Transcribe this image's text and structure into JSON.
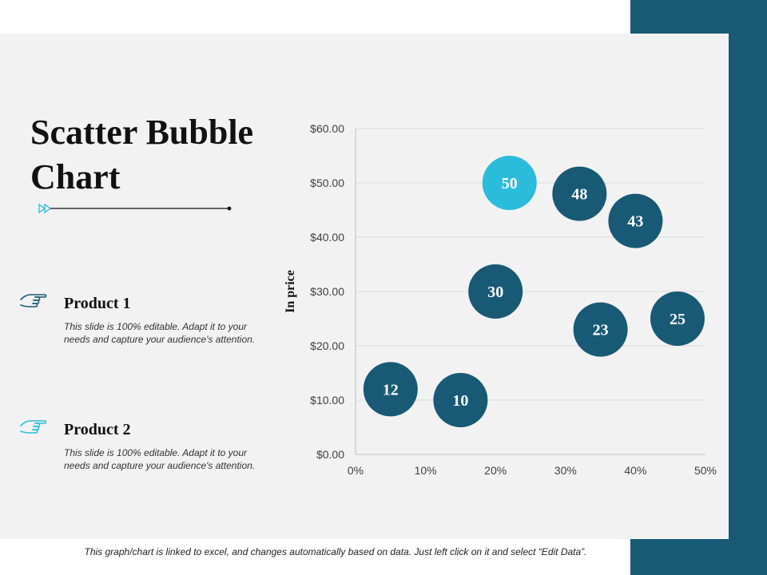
{
  "slide": {
    "title": "Scatter Bubble Chart",
    "footer": "This graph/chart is linked to excel, and changes automatically based on data. Just left click on it and select “Edit Data”.",
    "colors": {
      "side_bar": "#185A75",
      "panel": "#F2F2F2",
      "accent": "#2BBCDC",
      "bubble": "#185A75",
      "hand_1": "#185A75",
      "hand_2": "#2BBCDC"
    }
  },
  "products": [
    {
      "name": "Product 1",
      "description": "This slide is 100% editable. Adapt it to your needs and capture your audience's attention.",
      "icon": "hand-pointing-icon"
    },
    {
      "name": "Product 2",
      "description": "This slide is 100% editable. Adapt it to your needs and capture your audience's attention.",
      "icon": "hand-pointing-icon"
    }
  ],
  "chart_data": {
    "type": "scatter",
    "ylabel": "In price",
    "xlabel": "",
    "xlim": [
      0,
      50
    ],
    "ylim": [
      0,
      60
    ],
    "x_ticks": [
      "0%",
      "10%",
      "20%",
      "30%",
      "40%",
      "50%"
    ],
    "y_ticks": [
      "$0.00",
      "$10.00",
      "$20.00",
      "$30.00",
      "$40.00",
      "$50.00",
      "$60.00"
    ],
    "grid": true,
    "points": [
      {
        "x": 5,
        "y": 12,
        "label": "12",
        "highlight": false
      },
      {
        "x": 15,
        "y": 10,
        "label": "10",
        "highlight": false
      },
      {
        "x": 20,
        "y": 30,
        "label": "30",
        "highlight": false
      },
      {
        "x": 22,
        "y": 50,
        "label": "50",
        "highlight": true
      },
      {
        "x": 32,
        "y": 48,
        "label": "48",
        "highlight": false
      },
      {
        "x": 35,
        "y": 23,
        "label": "23",
        "highlight": false
      },
      {
        "x": 40,
        "y": 43,
        "label": "43",
        "highlight": false
      },
      {
        "x": 46,
        "y": 25,
        "label": "25",
        "highlight": false
      }
    ]
  }
}
